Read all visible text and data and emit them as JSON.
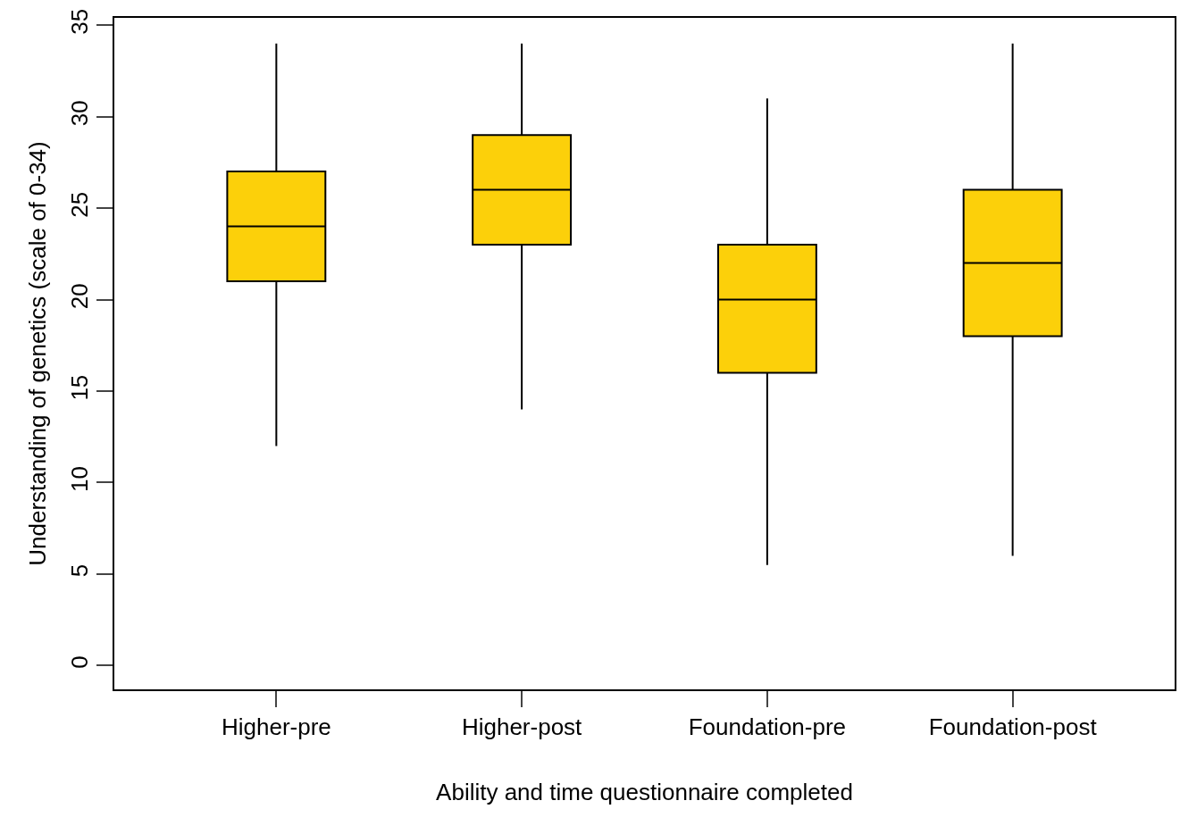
{
  "chart_data": {
    "type": "box",
    "xlabel": "Ability and time questionnaire completed",
    "ylabel": "Understanding of genetics (scale of 0-34)",
    "categories": [
      "Higher-pre",
      "Higher-post",
      "Foundation-pre",
      "Foundation-post"
    ],
    "boxes": [
      {
        "low": 12,
        "q1": 21,
        "median": 24,
        "q3": 27,
        "high": 34
      },
      {
        "low": 14,
        "q1": 23,
        "median": 26,
        "q3": 29,
        "high": 34
      },
      {
        "low": 5.5,
        "q1": 16,
        "median": 20,
        "q3": 23,
        "high": 31
      },
      {
        "low": 6,
        "q1": 18,
        "median": 22,
        "q3": 26,
        "high": 34
      }
    ],
    "color": "#fcd00a",
    "ylim": [
      -1.3,
      35.4
    ],
    "yticks": [
      0,
      5,
      10,
      15,
      20,
      25,
      30,
      35
    ],
    "grid": false
  }
}
